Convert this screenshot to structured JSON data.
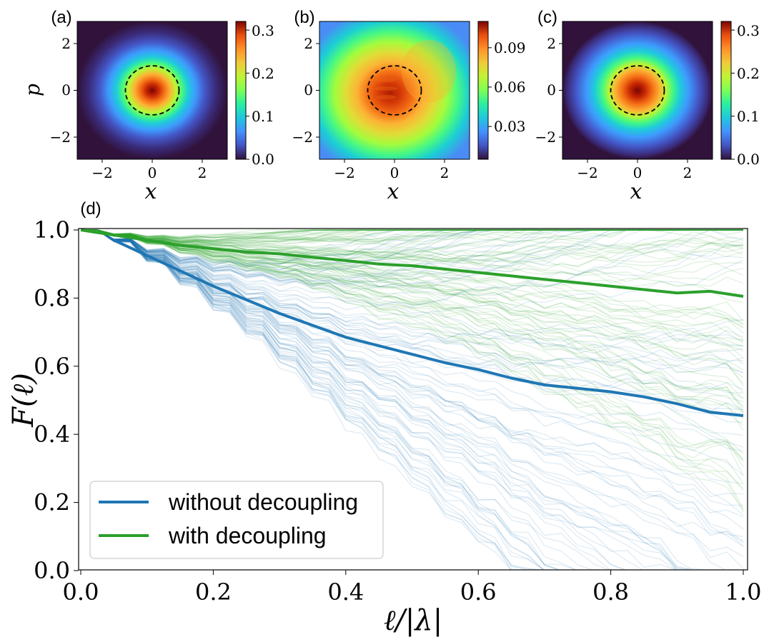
{
  "chart_data": [
    {
      "panel": "(a)",
      "type": "heatmap",
      "xlabel": "x",
      "ylabel": "p",
      "xlim": [
        -3,
        3
      ],
      "ylim": [
        -3,
        3
      ],
      "xticks": [
        "−2",
        "0",
        "2"
      ],
      "yticks": [
        "−2",
        "0",
        "2"
      ],
      "colorbar": {
        "min": 0.0,
        "max": 0.32,
        "ticks": [
          "0.0",
          "0.1",
          "0.2",
          "0.3"
        ],
        "tick_values": [
          0.0,
          0.1,
          0.2,
          0.3
        ]
      },
      "peak": 0.32,
      "sigma": 0.7,
      "circle_radius": 1.07
    },
    {
      "panel": "(b)",
      "type": "heatmap",
      "xlabel": "x",
      "ylabel": "",
      "xlim": [
        -3,
        3
      ],
      "ylim": [
        -3,
        3
      ],
      "xticks": [
        "−2",
        "0",
        "2"
      ],
      "yticks": [
        "−2",
        "0",
        "2"
      ],
      "colorbar": {
        "min": 0.01,
        "max": 0.115,
        "ticks": [
          "0.03",
          "0.06",
          "0.09"
        ],
        "tick_values": [
          0.03,
          0.06,
          0.09
        ]
      },
      "peak": 0.112,
      "sigma": 1.5,
      "circle_radius": 1.07
    },
    {
      "panel": "(c)",
      "type": "heatmap",
      "xlabel": "x",
      "ylabel": "",
      "xlim": [
        -3,
        3
      ],
      "ylim": [
        -3,
        3
      ],
      "xticks": [
        "−2",
        "0",
        "2"
      ],
      "yticks": [
        "−2",
        "0",
        "2"
      ],
      "colorbar": {
        "min": 0.0,
        "max": 0.32,
        "ticks": [
          "0.0",
          "0.1",
          "0.2",
          "0.3"
        ],
        "tick_values": [
          0.0,
          0.1,
          0.2,
          0.3
        ]
      },
      "peak": 0.32,
      "sigma": 0.85,
      "circle_radius": 1.07
    },
    {
      "panel": "(d)",
      "type": "line",
      "xlabel": "ℓ/|λ|",
      "ylabel": "F(ℓ)",
      "xlim": [
        0,
        1
      ],
      "ylim": [
        0,
        1
      ],
      "xticks": [
        "0.0",
        "0.2",
        "0.4",
        "0.6",
        "0.8",
        "1.0"
      ],
      "yticks": [
        "0.0",
        "0.2",
        "0.4",
        "0.6",
        "0.8",
        "1.0"
      ],
      "legend_position": "lower-left",
      "series": [
        {
          "name": "without decoupling",
          "color": "#1f77b4",
          "x": [
            0.05,
            0.1,
            0.15,
            0.2,
            0.25,
            0.3,
            0.35,
            0.4,
            0.45,
            0.5,
            0.55,
            0.6,
            0.65,
            0.7,
            0.75,
            0.8,
            0.85,
            0.9,
            0.95,
            1.0
          ],
          "values": [
            0.97,
            0.925,
            0.88,
            0.835,
            0.795,
            0.755,
            0.72,
            0.685,
            0.66,
            0.635,
            0.61,
            0.59,
            0.565,
            0.545,
            0.535,
            0.525,
            0.51,
            0.49,
            0.465,
            0.455
          ]
        },
        {
          "name": "with decoupling",
          "color": "#2ca02c",
          "x": [
            0.0,
            0.05,
            0.1,
            0.15,
            0.2,
            0.25,
            0.3,
            0.35,
            0.4,
            0.45,
            0.5,
            0.55,
            0.6,
            0.65,
            0.7,
            0.75,
            0.8,
            0.85,
            0.9,
            0.95,
            1.0
          ],
          "values": [
            1.0,
            0.985,
            0.97,
            0.955,
            0.945,
            0.935,
            0.93,
            0.92,
            0.91,
            0.9,
            0.895,
            0.885,
            0.875,
            0.865,
            0.855,
            0.845,
            0.835,
            0.825,
            0.815,
            0.82,
            0.805
          ]
        }
      ]
    }
  ]
}
